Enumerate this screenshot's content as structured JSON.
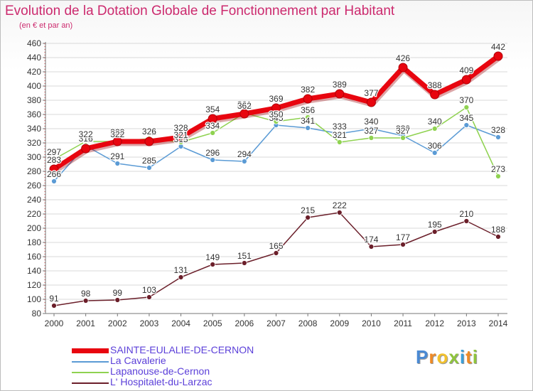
{
  "header": {
    "title": "Evolution de la Dotation Globale de Fonctionnement par Habitant",
    "subtitle": "(en € et par an)"
  },
  "brand": {
    "name": "Proxiti",
    "letters": [
      "P",
      "r",
      "o",
      "x",
      "i",
      "t",
      "i"
    ]
  },
  "colors": {
    "title": "#cc2a6e",
    "legend_text": "#5b3fd9",
    "grid": "#d9d9d9",
    "axis": "#777777",
    "tick_text": "#333333",
    "brand_letters": [
      "#4a8ad4",
      "#f08a24",
      "#f2c12e",
      "#8fc43c",
      "#3c9fd8",
      "#f08a24",
      "#8fc43c"
    ]
  },
  "chart_data": {
    "type": "line",
    "title": "Evolution de la Dotation Globale de Fonctionnement par Habitant",
    "subtitle": "(en € et par an)",
    "xlabel": "",
    "ylabel": "",
    "ylim": [
      80,
      460
    ],
    "ytick_step": 20,
    "grid": true,
    "legend_position": "bottom-left",
    "categories": [
      "2000",
      "2001",
      "2002",
      "2003",
      "2004",
      "2005",
      "2006",
      "2007",
      "2008",
      "2009",
      "2010",
      "2011",
      "2012",
      "2013",
      "2014"
    ],
    "series": [
      {
        "name": "SAINTE-EULALIE-DE-CERNON",
        "color": "#e8050f",
        "values": [
          283,
          312,
          322,
          322,
          328,
          354,
          361,
          369,
          382,
          389,
          377,
          426,
          388,
          409,
          442
        ],
        "label_dy": -6
      },
      {
        "name": "La Cavalerie",
        "color": "#5b9bd5",
        "values": [
          266,
          316,
          291,
          285,
          315,
          296,
          294,
          345,
          341,
          333,
          340,
          330,
          306,
          345,
          328
        ],
        "label_dy": -6
      },
      {
        "name": "Lapanouse-de-Cernon",
        "color": "#8fd250",
        "values": [
          297,
          322,
          322,
          326,
          321,
          334,
          362,
          350,
          356,
          321,
          327,
          327,
          340,
          370,
          273
        ],
        "label_dy": -6
      },
      {
        "name": "L' Hospitalet-du-Larzac",
        "color": "#6b1f2a",
        "values": [
          91,
          98,
          99,
          103,
          131,
          149,
          151,
          165,
          215,
          222,
          174,
          177,
          195,
          210,
          188
        ],
        "label_dy": -6
      }
    ]
  }
}
